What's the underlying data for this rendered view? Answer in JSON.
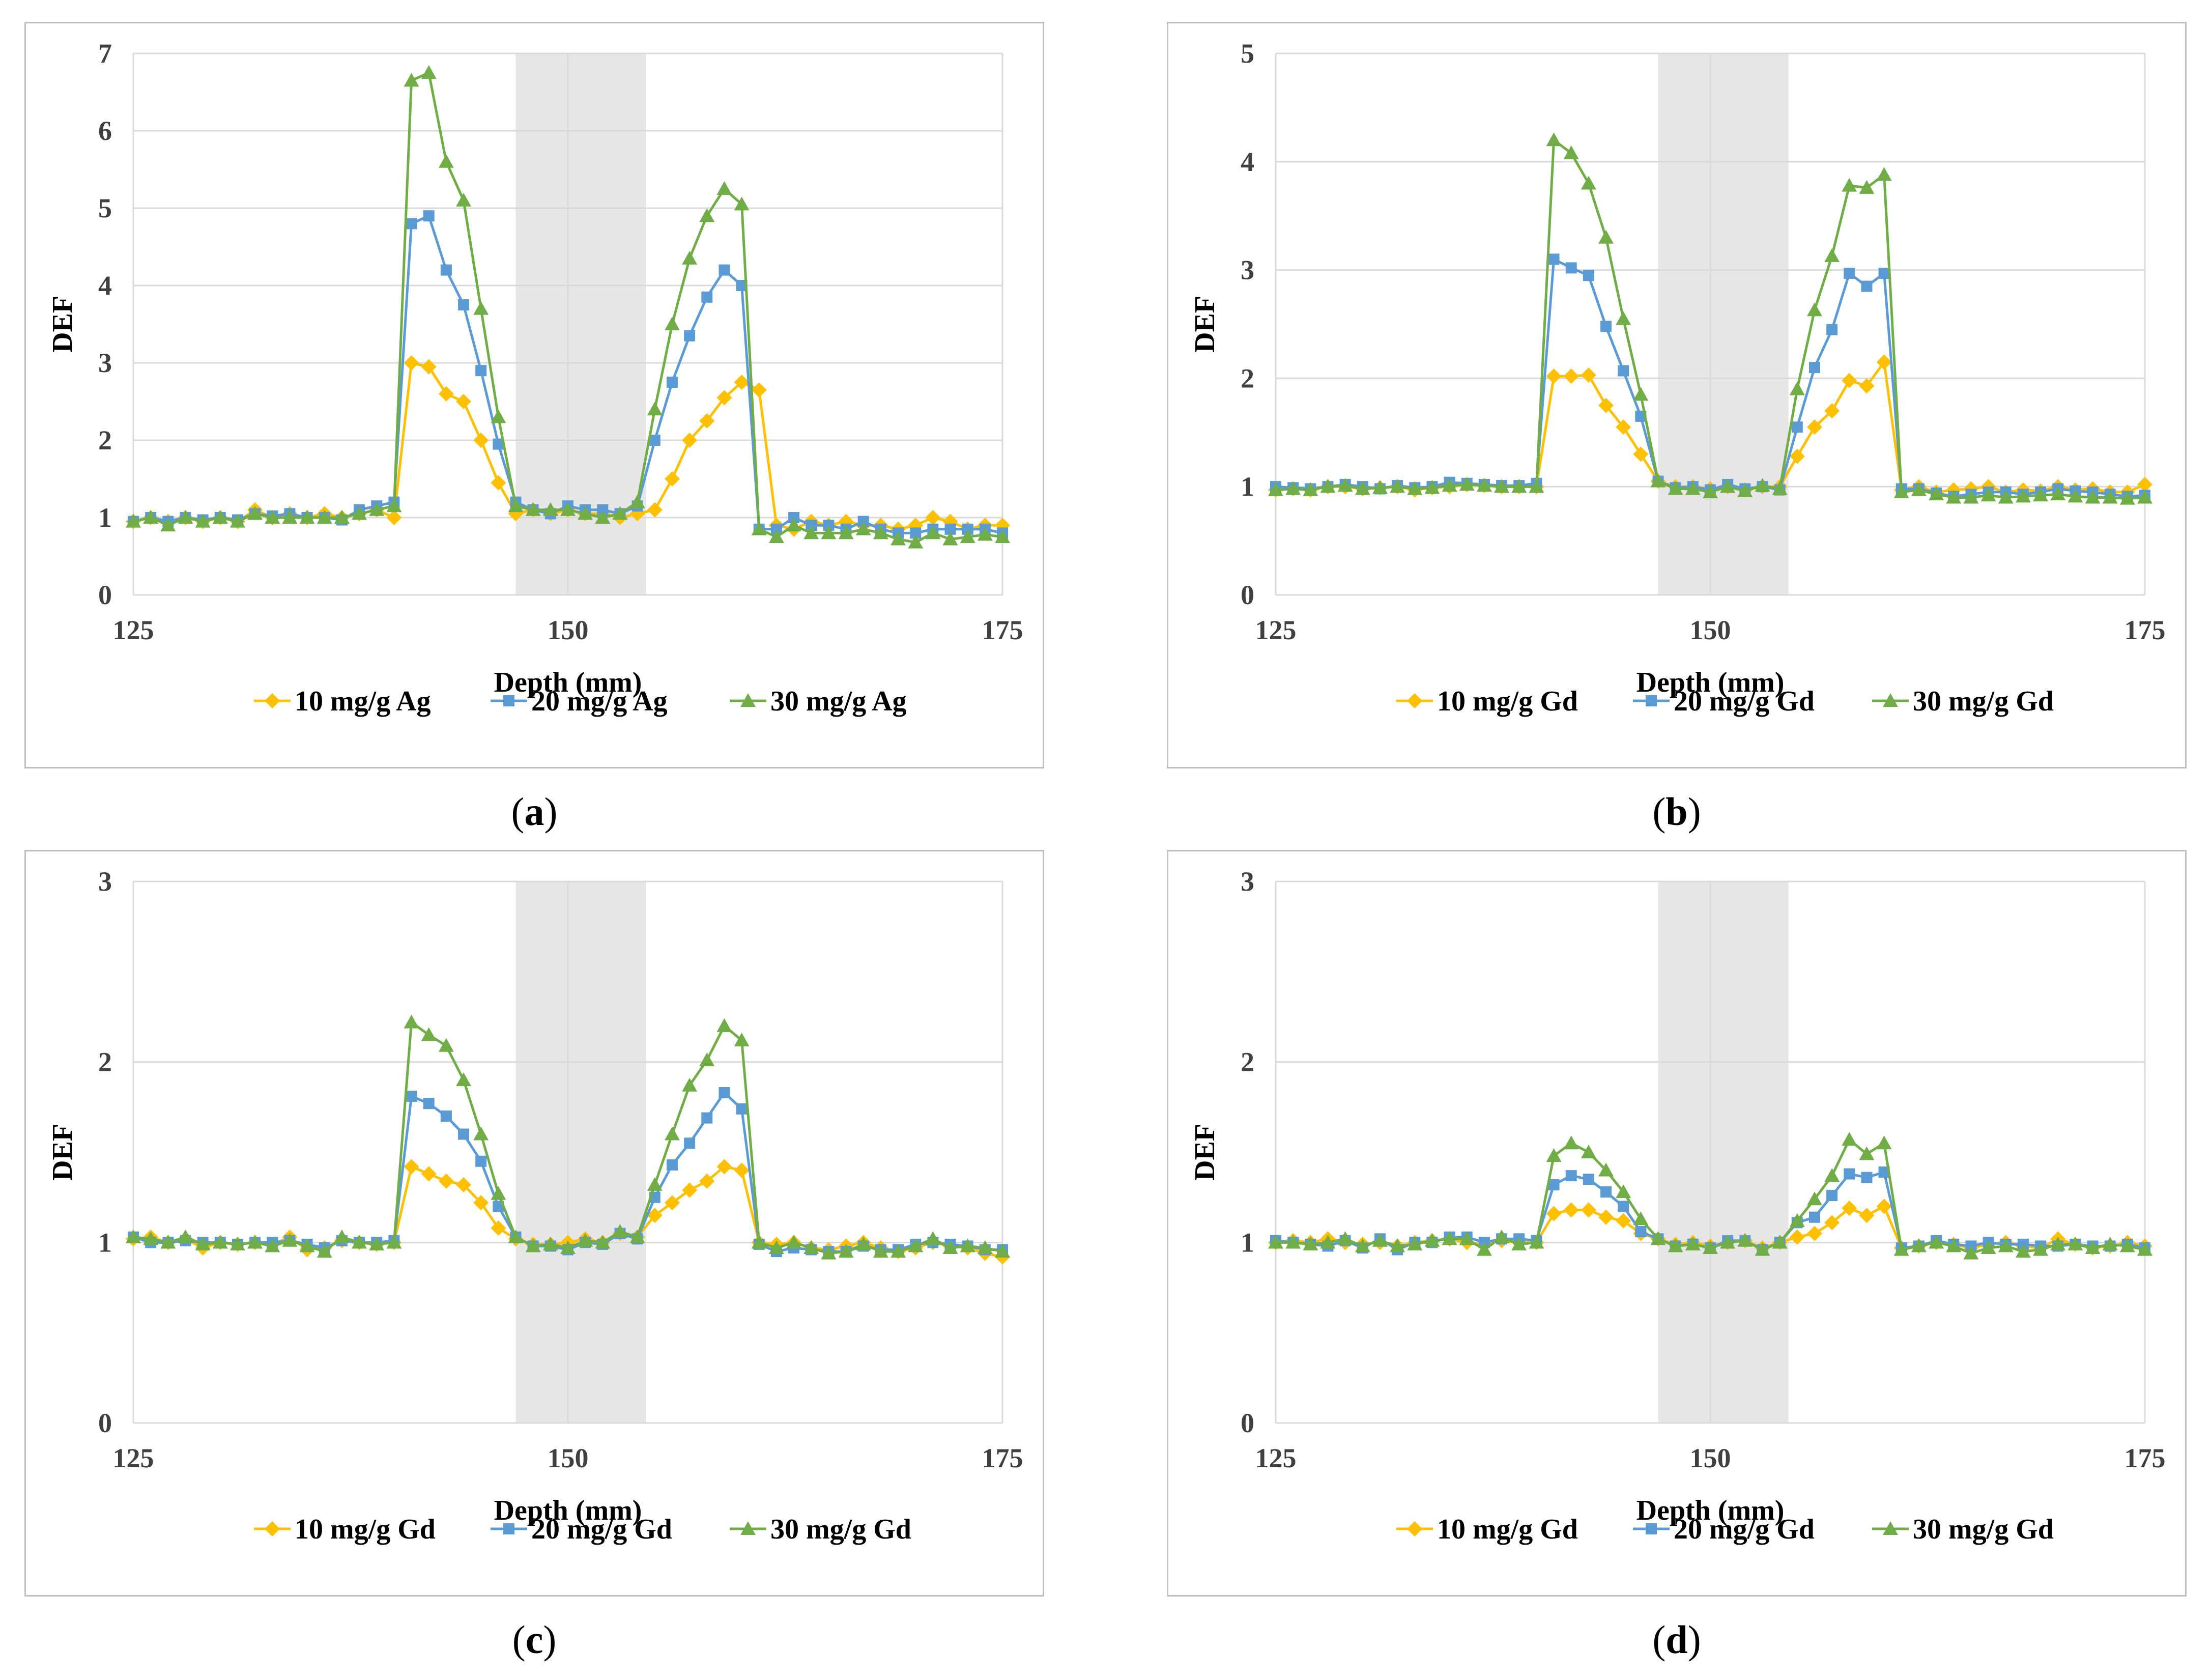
{
  "colors": {
    "s10": "#FFC000",
    "s20": "#5B9BD5",
    "s30": "#70AD47",
    "grid": "#d9d9d9",
    "shade": "#e6e6e6"
  },
  "chart_data": [
    {
      "type": "line",
      "caption": "a",
      "xlabel": "Depth (mm)",
      "ylabel": "DEF",
      "xlim": [
        125,
        175
      ],
      "ylim": [
        0,
        7
      ],
      "xticks": [
        "125",
        "150",
        "175"
      ],
      "yticks": [
        "0",
        "1",
        "2",
        "3",
        "4",
        "5",
        "6",
        "7"
      ],
      "shaded_region": [
        147,
        154.5
      ],
      "x": [
        125,
        126,
        127,
        128,
        129,
        130,
        131,
        132,
        133,
        134,
        135,
        136,
        137,
        138,
        139,
        140,
        141,
        142,
        143,
        144,
        145,
        146,
        147,
        148,
        149,
        150,
        151,
        152,
        153,
        154,
        155,
        156,
        157,
        158,
        159,
        160,
        161,
        162,
        163,
        164,
        165,
        166,
        167,
        168,
        169,
        170,
        171,
        172,
        173,
        174,
        175
      ],
      "series": [
        {
          "name": "10 mg/g Ag",
          "marker": "diamond",
          "values": [
            0.95,
            1.0,
            0.95,
            1.0,
            0.95,
            1.0,
            0.95,
            1.1,
            1.0,
            1.05,
            1.0,
            1.05,
            1.0,
            1.05,
            1.1,
            1.0,
            3.0,
            2.95,
            2.6,
            2.5,
            2.0,
            1.45,
            1.05,
            1.1,
            1.05,
            1.1,
            1.05,
            1.05,
            1.0,
            1.05,
            1.1,
            1.5,
            2.0,
            2.25,
            2.55,
            2.75,
            2.65,
            0.9,
            0.85,
            0.95,
            0.9,
            0.95,
            0.9,
            0.9,
            0.85,
            0.9,
            1.0,
            0.95,
            0.85,
            0.9,
            0.9
          ]
        },
        {
          "name": "20 mg/g Ag",
          "marker": "square",
          "values": [
            0.95,
            1.0,
            0.95,
            1.0,
            0.97,
            1.0,
            0.97,
            1.05,
            1.02,
            1.05,
            1.0,
            1.0,
            0.97,
            1.1,
            1.15,
            1.2,
            4.8,
            4.9,
            4.2,
            3.75,
            2.9,
            1.95,
            1.2,
            1.1,
            1.05,
            1.15,
            1.1,
            1.1,
            1.05,
            1.15,
            2.0,
            2.75,
            3.35,
            3.85,
            4.2,
            4.0,
            0.85,
            0.85,
            1.0,
            0.9,
            0.9,
            0.85,
            0.95,
            0.85,
            0.8,
            0.8,
            0.85,
            0.85,
            0.85,
            0.85,
            0.8
          ]
        },
        {
          "name": "30 mg/g Ag",
          "marker": "triangle",
          "values": [
            0.95,
            1.0,
            0.9,
            1.0,
            0.95,
            1.0,
            0.95,
            1.05,
            1.0,
            1.0,
            1.0,
            1.0,
            1.0,
            1.05,
            1.1,
            1.15,
            6.65,
            6.75,
            5.6,
            5.1,
            3.7,
            2.3,
            1.15,
            1.1,
            1.1,
            1.1,
            1.05,
            1.0,
            1.05,
            1.2,
            2.4,
            3.5,
            4.35,
            4.9,
            5.25,
            5.05,
            0.85,
            0.75,
            0.9,
            0.8,
            0.8,
            0.8,
            0.85,
            0.8,
            0.72,
            0.68,
            0.8,
            0.72,
            0.75,
            0.78,
            0.75
          ]
        }
      ],
      "legend": [
        "10 mg/g Ag",
        "20 mg/g Ag",
        "30 mg/g Ag"
      ]
    },
    {
      "type": "line",
      "caption": "b",
      "xlabel": "Depth (mm)",
      "ylabel": "DEF",
      "xlim": [
        125,
        175
      ],
      "ylim": [
        0,
        5
      ],
      "xticks": [
        "125",
        "150",
        "175"
      ],
      "yticks": [
        "0",
        "1",
        "2",
        "3",
        "4",
        "5"
      ],
      "shaded_region": [
        147,
        154.5
      ],
      "x": [
        125,
        126,
        127,
        128,
        129,
        130,
        131,
        132,
        133,
        134,
        135,
        136,
        137,
        138,
        139,
        140,
        141,
        142,
        143,
        144,
        145,
        146,
        147,
        148,
        149,
        150,
        151,
        152,
        153,
        154,
        155,
        156,
        157,
        158,
        159,
        160,
        161,
        162,
        163,
        164,
        165,
        166,
        167,
        168,
        169,
        170,
        171,
        172,
        173,
        174,
        175
      ],
      "series": [
        {
          "name": "10 mg/g Gd",
          "marker": "diamond",
          "values": [
            0.97,
            0.98,
            0.97,
            1.0,
            1.0,
            0.98,
            0.99,
            1.0,
            0.97,
            0.99,
            1.0,
            1.02,
            1.01,
            1.0,
            1.0,
            1.0,
            2.02,
            2.02,
            2.03,
            1.75,
            1.55,
            1.3,
            1.05,
            1.0,
            1.0,
            0.98,
            1.0,
            0.97,
            1.0,
            1.0,
            1.28,
            1.55,
            1.7,
            1.98,
            1.93,
            2.15,
            0.97,
            1.0,
            0.95,
            0.97,
            0.98,
            1.0,
            0.95,
            0.97,
            0.96,
            1.0,
            0.97,
            0.98,
            0.95,
            0.95,
            1.02
          ]
        },
        {
          "name": "20 mg/g Gd",
          "marker": "square",
          "values": [
            1.0,
            0.99,
            0.98,
            1.0,
            1.02,
            1.0,
            0.98,
            1.01,
            0.99,
            1.0,
            1.04,
            1.03,
            1.02,
            1.01,
            1.01,
            1.03,
            3.1,
            3.02,
            2.95,
            2.48,
            2.07,
            1.65,
            1.05,
            0.99,
            1.0,
            0.97,
            1.02,
            0.98,
            1.0,
            0.97,
            1.55,
            2.1,
            2.45,
            2.97,
            2.85,
            2.97,
            0.98,
            0.98,
            0.94,
            0.91,
            0.93,
            0.95,
            0.95,
            0.93,
            0.95,
            0.98,
            0.96,
            0.95,
            0.93,
            0.91,
            0.92
          ]
        },
        {
          "name": "30 mg/g Gd",
          "marker": "triangle",
          "values": [
            0.97,
            0.98,
            0.97,
            1.0,
            1.01,
            0.98,
            0.99,
            1.0,
            0.98,
            0.99,
            1.01,
            1.02,
            1.01,
            1.0,
            1.0,
            1.0,
            4.2,
            4.08,
            3.8,
            3.3,
            2.55,
            1.85,
            1.05,
            0.98,
            0.98,
            0.95,
            1.0,
            0.96,
            1.01,
            0.98,
            1.9,
            2.63,
            3.13,
            3.78,
            3.76,
            3.88,
            0.95,
            0.97,
            0.93,
            0.9,
            0.9,
            0.92,
            0.9,
            0.91,
            0.92,
            0.93,
            0.91,
            0.9,
            0.9,
            0.89,
            0.9
          ]
        }
      ],
      "legend": [
        "10 mg/g Gd",
        "20 mg/g Gd",
        "30 mg/g Gd"
      ]
    },
    {
      "type": "line",
      "caption": "c",
      "xlabel": "Depth (mm)",
      "ylabel": "DEF",
      "xlim": [
        125,
        175
      ],
      "ylim": [
        0,
        3
      ],
      "xticks": [
        "125",
        "150",
        "175"
      ],
      "yticks": [
        "0",
        "1",
        "2",
        "3"
      ],
      "shaded_region": [
        147,
        154.5
      ],
      "x": [
        125,
        126,
        127,
        128,
        129,
        130,
        131,
        132,
        133,
        134,
        135,
        136,
        137,
        138,
        139,
        140,
        141,
        142,
        143,
        144,
        145,
        146,
        147,
        148,
        149,
        150,
        151,
        152,
        153,
        154,
        155,
        156,
        157,
        158,
        159,
        160,
        161,
        162,
        163,
        164,
        165,
        166,
        167,
        168,
        169,
        170,
        171,
        172,
        173,
        174,
        175
      ],
      "series": [
        {
          "name": "10 mg/g Gd",
          "marker": "diamond",
          "values": [
            1.02,
            1.03,
            1.0,
            1.02,
            0.97,
            1.0,
            0.99,
            1.0,
            0.99,
            1.03,
            0.96,
            0.97,
            1.01,
            1.0,
            0.99,
            1.0,
            1.42,
            1.38,
            1.34,
            1.32,
            1.22,
            1.08,
            1.02,
            0.99,
            0.99,
            1.0,
            1.02,
            1.0,
            1.05,
            1.03,
            1.15,
            1.22,
            1.29,
            1.34,
            1.42,
            1.4,
            1.0,
            0.99,
            1.0,
            0.97,
            0.96,
            0.98,
            1.0,
            0.97,
            0.95,
            0.97,
            1.0,
            0.98,
            0.97,
            0.94,
            0.92
          ]
        },
        {
          "name": "20 mg/g Gd",
          "marker": "square",
          "values": [
            1.03,
            1.0,
            1.0,
            1.01,
            1.0,
            1.0,
            0.99,
            1.0,
            1.0,
            1.01,
            0.99,
            0.97,
            1.01,
            1.0,
            1.0,
            1.01,
            1.81,
            1.77,
            1.7,
            1.6,
            1.45,
            1.2,
            1.03,
            0.98,
            0.98,
            0.96,
            1.0,
            0.99,
            1.05,
            1.02,
            1.25,
            1.43,
            1.55,
            1.69,
            1.83,
            1.74,
            0.99,
            0.95,
            0.97,
            0.96,
            0.95,
            0.95,
            0.98,
            0.96,
            0.96,
            0.99,
            1.0,
            0.99,
            0.98,
            0.96,
            0.96
          ]
        },
        {
          "name": "30 mg/g Gd",
          "marker": "triangle",
          "values": [
            1.03,
            1.02,
            1.0,
            1.03,
            0.99,
            1.0,
            0.99,
            1.0,
            0.98,
            1.01,
            0.98,
            0.95,
            1.03,
            1.0,
            0.99,
            1.0,
            2.22,
            2.15,
            2.09,
            1.9,
            1.6,
            1.27,
            1.03,
            0.98,
            0.99,
            0.97,
            1.01,
            1.0,
            1.06,
            1.03,
            1.32,
            1.6,
            1.87,
            2.01,
            2.2,
            2.12,
            1.0,
            0.97,
            1.0,
            0.97,
            0.94,
            0.95,
            0.99,
            0.95,
            0.95,
            0.98,
            1.02,
            0.97,
            0.98,
            0.97,
            0.95
          ]
        }
      ],
      "legend": [
        "10 mg/g Gd",
        "20 mg/g Gd",
        "30 mg/g Gd"
      ]
    },
    {
      "type": "line",
      "caption": "d",
      "xlabel": "Depth (mm)",
      "ylabel": "DEF",
      "xlim": [
        125,
        175
      ],
      "ylim": [
        0,
        3
      ],
      "xticks": [
        "125",
        "150",
        "175"
      ],
      "yticks": [
        "0",
        "1",
        "2",
        "3"
      ],
      "shaded_region": [
        147,
        154.5
      ],
      "x": [
        125,
        126,
        127,
        128,
        129,
        130,
        131,
        132,
        133,
        134,
        135,
        136,
        137,
        138,
        139,
        140,
        141,
        142,
        143,
        144,
        145,
        146,
        147,
        148,
        149,
        150,
        151,
        152,
        153,
        154,
        155,
        156,
        157,
        158,
        159,
        160,
        161,
        162,
        163,
        164,
        165,
        166,
        167,
        168,
        169,
        170,
        171,
        172,
        173,
        174,
        175
      ],
      "series": [
        {
          "name": "10 mg/g Gd",
          "marker": "diamond",
          "values": [
            1.0,
            1.01,
            1.0,
            1.02,
            1.0,
            0.99,
            1.0,
            0.98,
            1.0,
            1.01,
            1.02,
            1.0,
            0.99,
            1.01,
            1.0,
            1.0,
            1.16,
            1.18,
            1.18,
            1.14,
            1.12,
            1.05,
            1.02,
            0.99,
            1.0,
            0.98,
            1.0,
            1.01,
            0.97,
            1.0,
            1.03,
            1.05,
            1.11,
            1.19,
            1.15,
            1.2,
            0.97,
            0.98,
            1.0,
            0.99,
            0.97,
            0.99,
            1.0,
            0.98,
            0.97,
            1.02,
            0.99,
            0.97,
            0.98,
            1.0,
            0.98
          ]
        },
        {
          "name": "20 mg/g Gd",
          "marker": "square",
          "values": [
            1.01,
            1.0,
            0.99,
            0.98,
            1.01,
            0.97,
            1.02,
            0.96,
            1.0,
            1.0,
            1.03,
            1.03,
            1.0,
            1.02,
            1.02,
            1.01,
            1.32,
            1.37,
            1.35,
            1.28,
            1.2,
            1.06,
            1.02,
            0.98,
            0.99,
            0.97,
            1.01,
            1.01,
            0.96,
            1.0,
            1.11,
            1.14,
            1.26,
            1.38,
            1.36,
            1.39,
            0.97,
            0.98,
            1.01,
            0.99,
            0.98,
            1.0,
            0.99,
            0.99,
            0.98,
            0.98,
            0.99,
            0.98,
            0.98,
            0.99,
            0.97
          ]
        },
        {
          "name": "30 mg/g Gd",
          "marker": "triangle",
          "values": [
            1.0,
            1.0,
            0.99,
            1.0,
            1.02,
            0.98,
            1.01,
            0.98,
            0.99,
            1.01,
            1.02,
            1.02,
            0.96,
            1.03,
            0.99,
            1.0,
            1.48,
            1.55,
            1.5,
            1.4,
            1.28,
            1.13,
            1.02,
            0.98,
            0.99,
            0.97,
            1.0,
            1.01,
            0.96,
            1.0,
            1.12,
            1.24,
            1.37,
            1.57,
            1.49,
            1.55,
            0.96,
            0.98,
            1.0,
            0.98,
            0.94,
            0.97,
            0.98,
            0.95,
            0.96,
            0.99,
            0.99,
            0.97,
            0.99,
            0.98,
            0.96
          ]
        }
      ],
      "legend": [
        "10 mg/g Gd",
        "20 mg/g Gd",
        "30 mg/g Gd"
      ]
    }
  ]
}
